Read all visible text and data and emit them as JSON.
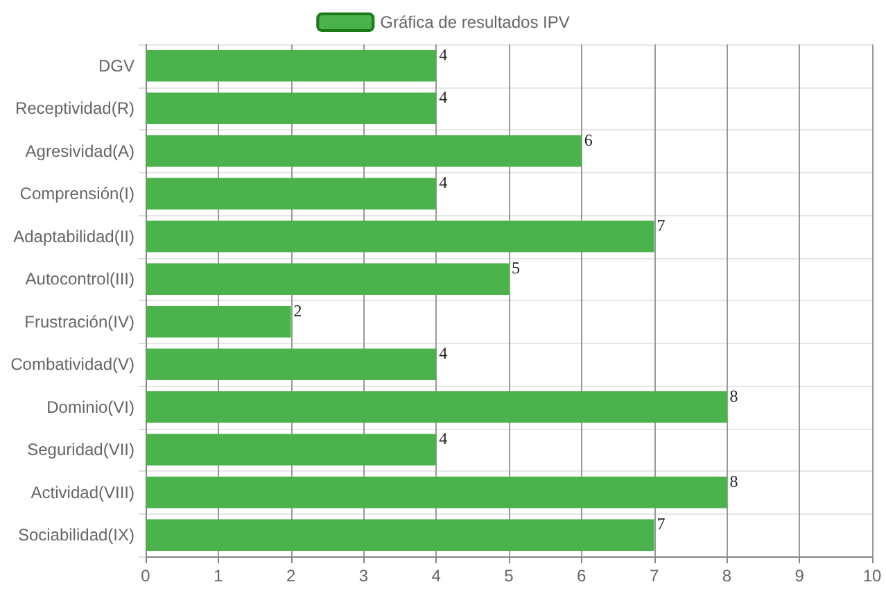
{
  "chart_data": {
    "type": "bar",
    "orientation": "horizontal",
    "categories": [
      "DGV",
      "Receptividad(R)",
      "Agresividad(A)",
      "Comprensión(I)",
      "Adaptabilidad(II)",
      "Autocontrol(III)",
      "Frustración(IV)",
      "Combatividad(V)",
      "Dominio(VI)",
      "Seguridad(VII)",
      "Actividad(VIII)",
      "Sociabilidad(IX)"
    ],
    "series": [
      {
        "name": "Gráfica de resultados IPV",
        "color": "#4cb24c",
        "values": [
          4,
          4,
          6,
          4,
          7,
          5,
          2,
          4,
          8,
          4,
          8,
          7
        ]
      }
    ],
    "xlim": [
      0,
      10
    ],
    "xticks": [
      0,
      1,
      2,
      3,
      4,
      5,
      6,
      7,
      8,
      9,
      10
    ],
    "grid": true,
    "legend": "top",
    "data_labels": true
  }
}
